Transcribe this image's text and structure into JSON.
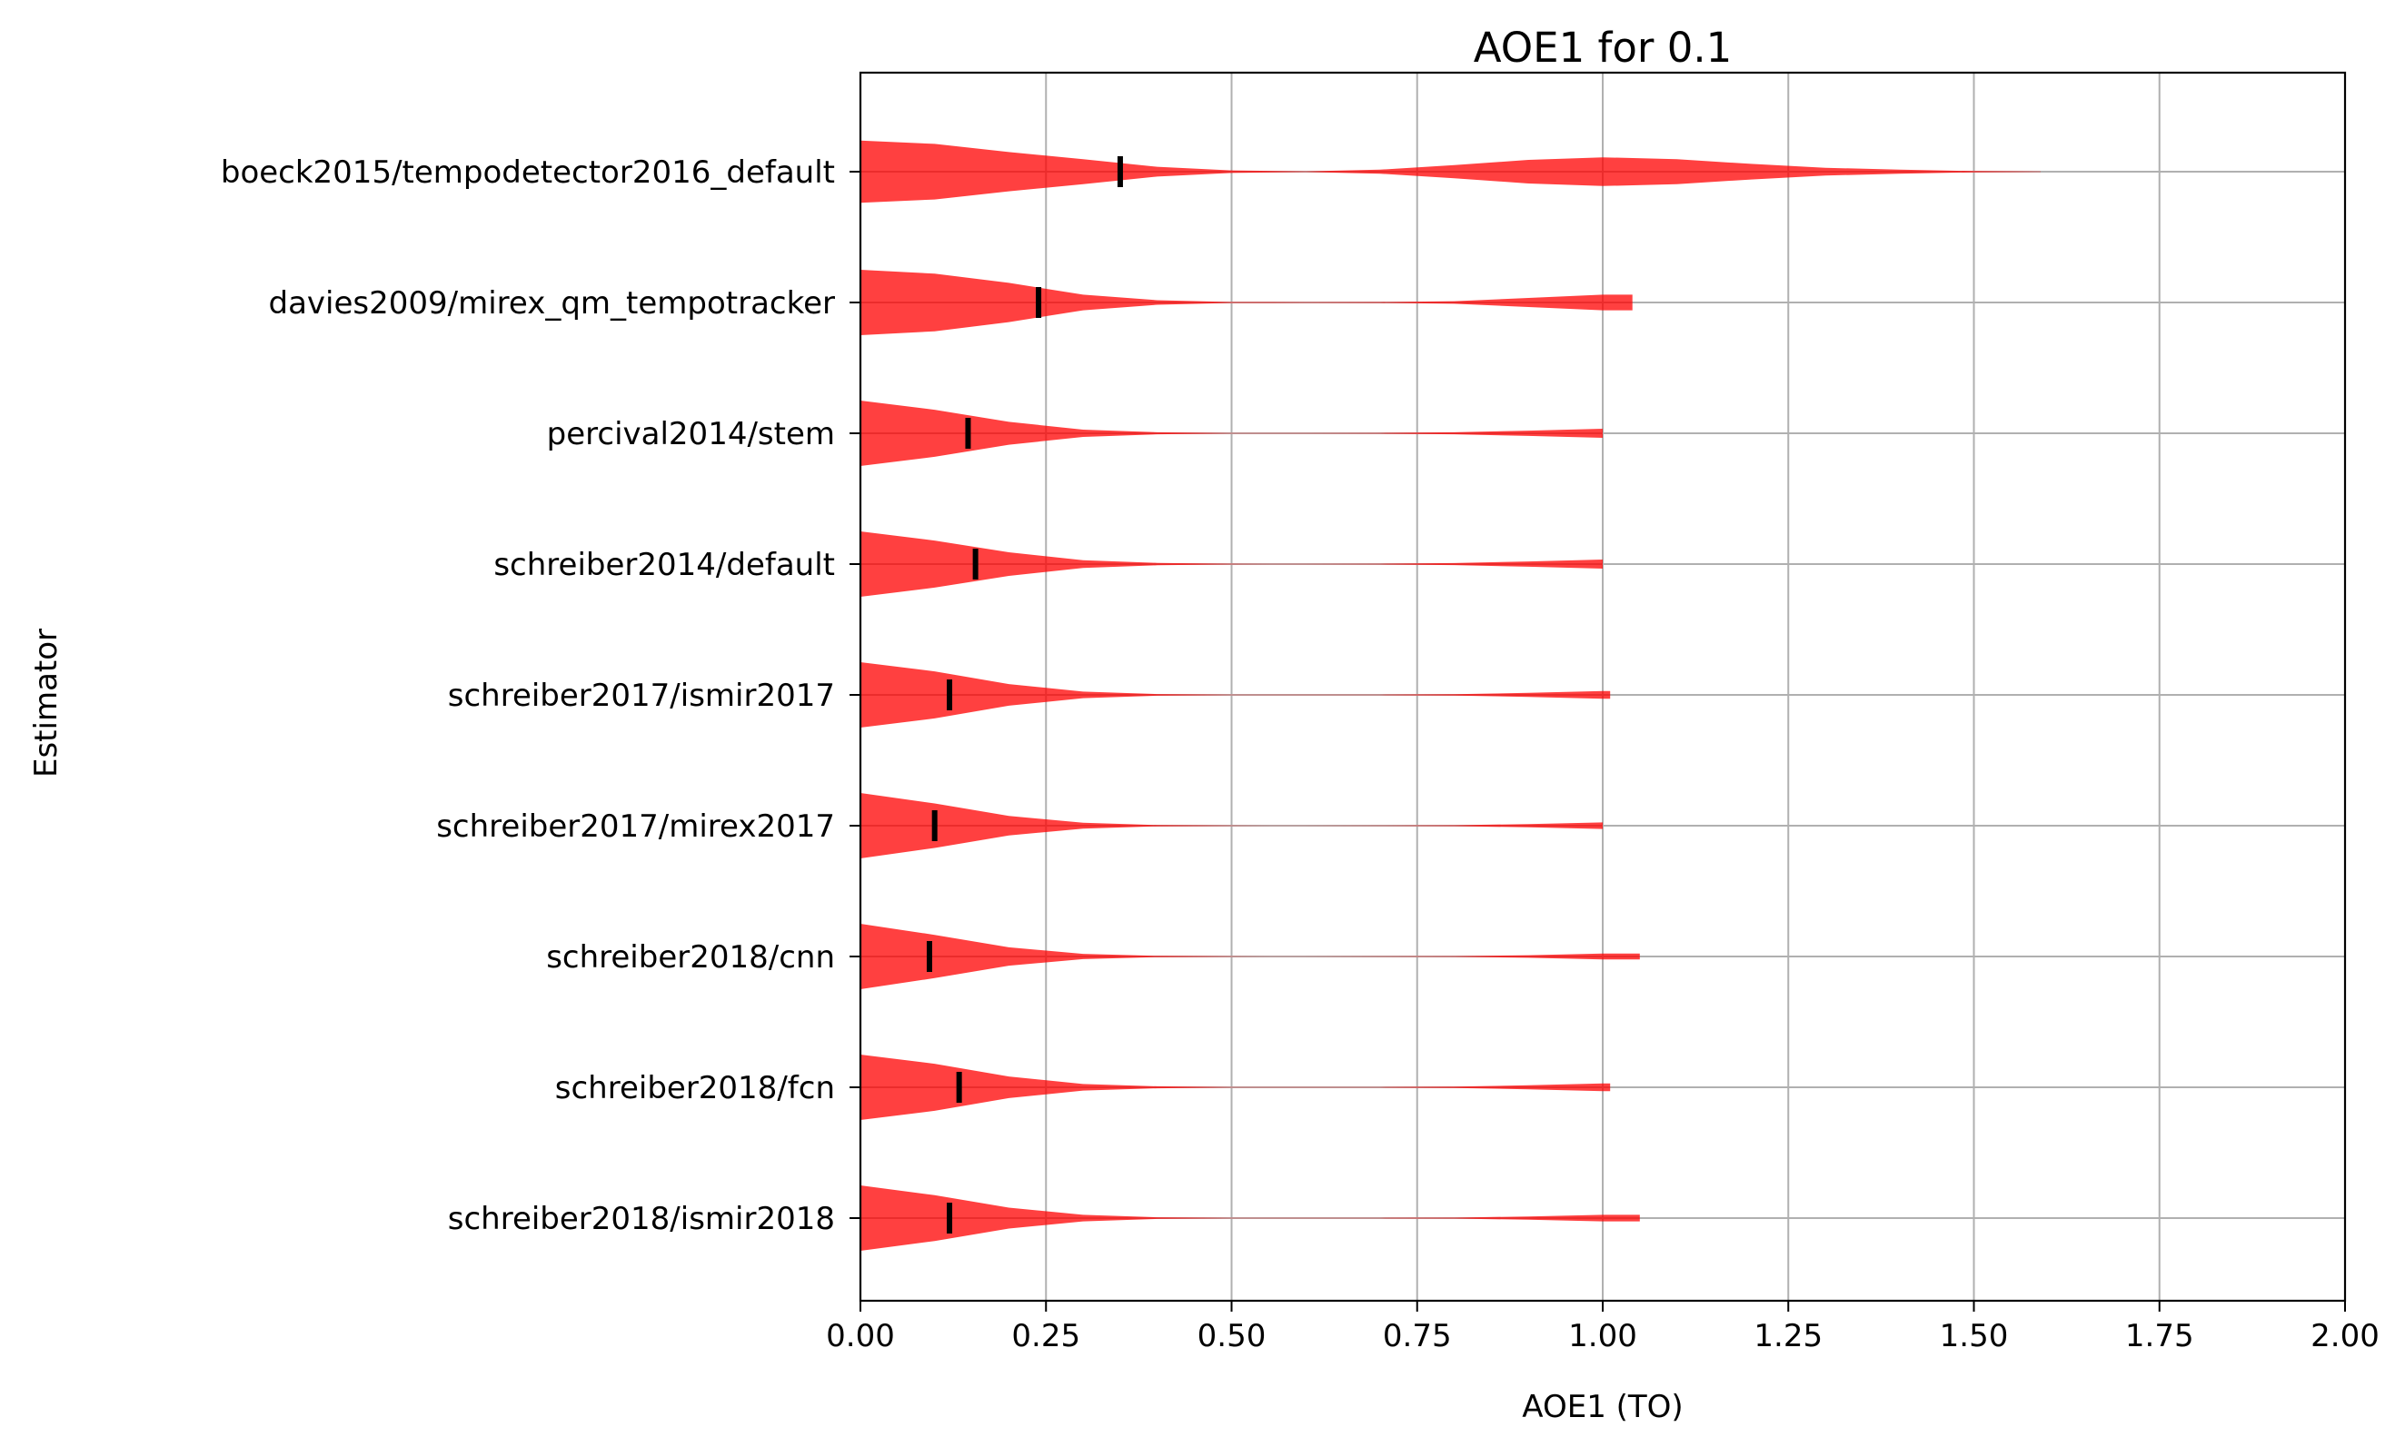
{
  "chart_data": {
    "type": "violin",
    "orientation": "horizontal",
    "title": "AOE1 for 0.1",
    "xlabel": "AOE1 (TO)",
    "ylabel": "Estimator",
    "xlim": [
      0,
      2
    ],
    "xticks": [
      "0.00",
      "0.25",
      "0.50",
      "0.75",
      "1.00",
      "1.25",
      "1.50",
      "1.75",
      "2.00"
    ],
    "grid": true,
    "violin_color": "#ff0000",
    "violin_alpha": 0.75,
    "median_marker_color": "#000000",
    "categories": [
      "boeck2015/tempodetector2016_default",
      "davies2009/mirex_qm_tempotracker",
      "percival2014/stem",
      "schreiber2014/default",
      "schreiber2017/ismir2017",
      "schreiber2017/mirex2017",
      "schreiber2018/cnn",
      "schreiber2018/fcn",
      "schreiber2018/ismir2018"
    ],
    "series": [
      {
        "median": 0.35,
        "max": 1.59,
        "profile": [
          [
            0,
            0.95
          ],
          [
            0.1,
            0.85
          ],
          [
            0.2,
            0.6
          ],
          [
            0.3,
            0.38
          ],
          [
            0.4,
            0.15
          ],
          [
            0.5,
            0.04
          ],
          [
            0.6,
            0.01
          ],
          [
            0.7,
            0.06
          ],
          [
            0.8,
            0.2
          ],
          [
            0.9,
            0.36
          ],
          [
            1.0,
            0.44
          ],
          [
            1.1,
            0.38
          ],
          [
            1.2,
            0.24
          ],
          [
            1.3,
            0.12
          ],
          [
            1.4,
            0.06
          ],
          [
            1.5,
            0.02
          ],
          [
            1.59,
            0.005
          ]
        ]
      },
      {
        "median": 0.24,
        "max": 1.04,
        "profile": [
          [
            0,
            1.0
          ],
          [
            0.1,
            0.88
          ],
          [
            0.2,
            0.6
          ],
          [
            0.3,
            0.24
          ],
          [
            0.4,
            0.07
          ],
          [
            0.5,
            0.015
          ],
          [
            0.6,
            0.01
          ],
          [
            0.7,
            0.015
          ],
          [
            0.8,
            0.04
          ],
          [
            0.9,
            0.14
          ],
          [
            1.0,
            0.24
          ],
          [
            1.04,
            0.24
          ]
        ]
      },
      {
        "median": 0.145,
        "max": 1.0,
        "profile": [
          [
            0,
            1.0
          ],
          [
            0.1,
            0.72
          ],
          [
            0.2,
            0.35
          ],
          [
            0.3,
            0.11
          ],
          [
            0.4,
            0.03
          ],
          [
            0.5,
            0.008
          ],
          [
            0.6,
            0.005
          ],
          [
            0.7,
            0.01
          ],
          [
            0.8,
            0.03
          ],
          [
            0.9,
            0.08
          ],
          [
            1.0,
            0.14
          ]
        ]
      },
      {
        "median": 0.155,
        "max": 1.0,
        "profile": [
          [
            0,
            1.0
          ],
          [
            0.1,
            0.72
          ],
          [
            0.2,
            0.36
          ],
          [
            0.3,
            0.12
          ],
          [
            0.4,
            0.035
          ],
          [
            0.5,
            0.01
          ],
          [
            0.6,
            0.005
          ],
          [
            0.7,
            0.01
          ],
          [
            0.8,
            0.03
          ],
          [
            0.9,
            0.08
          ],
          [
            1.0,
            0.14
          ]
        ]
      },
      {
        "median": 0.12,
        "max": 1.01,
        "profile": [
          [
            0,
            1.0
          ],
          [
            0.1,
            0.72
          ],
          [
            0.2,
            0.33
          ],
          [
            0.3,
            0.1
          ],
          [
            0.4,
            0.025
          ],
          [
            0.5,
            0.008
          ],
          [
            0.6,
            0.005
          ],
          [
            0.7,
            0.008
          ],
          [
            0.8,
            0.02
          ],
          [
            0.9,
            0.06
          ],
          [
            1.0,
            0.12
          ],
          [
            1.01,
            0.12
          ]
        ]
      },
      {
        "median": 0.1,
        "max": 1.0,
        "profile": [
          [
            0,
            1.0
          ],
          [
            0.1,
            0.68
          ],
          [
            0.2,
            0.3
          ],
          [
            0.3,
            0.09
          ],
          [
            0.4,
            0.02
          ],
          [
            0.5,
            0.006
          ],
          [
            0.6,
            0.004
          ],
          [
            0.7,
            0.006
          ],
          [
            0.8,
            0.015
          ],
          [
            0.9,
            0.05
          ],
          [
            1.0,
            0.1
          ]
        ]
      },
      {
        "median": 0.093,
        "max": 1.05,
        "profile": [
          [
            0,
            1.0
          ],
          [
            0.1,
            0.66
          ],
          [
            0.2,
            0.28
          ],
          [
            0.3,
            0.08
          ],
          [
            0.4,
            0.02
          ],
          [
            0.5,
            0.006
          ],
          [
            0.6,
            0.004
          ],
          [
            0.7,
            0.006
          ],
          [
            0.8,
            0.012
          ],
          [
            0.9,
            0.04
          ],
          [
            1.0,
            0.09
          ],
          [
            1.05,
            0.09
          ]
        ]
      },
      {
        "median": 0.133,
        "max": 1.01,
        "profile": [
          [
            0,
            1.0
          ],
          [
            0.1,
            0.72
          ],
          [
            0.2,
            0.33
          ],
          [
            0.3,
            0.1
          ],
          [
            0.4,
            0.03
          ],
          [
            0.5,
            0.008
          ],
          [
            0.6,
            0.005
          ],
          [
            0.7,
            0.008
          ],
          [
            0.8,
            0.02
          ],
          [
            0.9,
            0.06
          ],
          [
            1.0,
            0.12
          ],
          [
            1.01,
            0.12
          ]
        ]
      },
      {
        "median": 0.12,
        "max": 1.05,
        "profile": [
          [
            0,
            1.0
          ],
          [
            0.1,
            0.7
          ],
          [
            0.2,
            0.32
          ],
          [
            0.3,
            0.1
          ],
          [
            0.4,
            0.025
          ],
          [
            0.5,
            0.008
          ],
          [
            0.6,
            0.005
          ],
          [
            0.7,
            0.008
          ],
          [
            0.8,
            0.015
          ],
          [
            0.9,
            0.05
          ],
          [
            1.0,
            0.1
          ],
          [
            1.05,
            0.1
          ]
        ]
      }
    ]
  }
}
